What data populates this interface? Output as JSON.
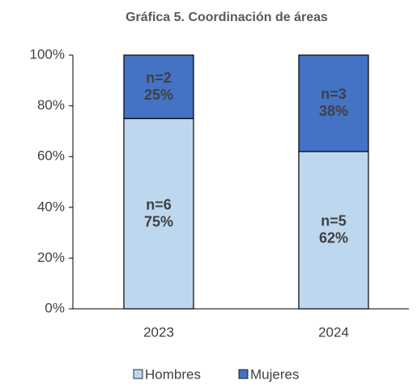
{
  "chart_data": {
    "type": "stacked_bar",
    "title": "Gráfica 5. Coordinación de áreas",
    "categories": [
      "2023",
      "2024"
    ],
    "series": [
      {
        "name": "Hombres",
        "color": "#bdd7ee",
        "values": [
          75,
          62
        ],
        "value_labels": [
          "75%",
          "62%"
        ],
        "count_labels": [
          "n=6",
          "n=5"
        ]
      },
      {
        "name": "Mujeres",
        "color": "#4472c4",
        "values": [
          25,
          38
        ],
        "value_labels": [
          "25%",
          "38%"
        ],
        "count_labels": [
          "n=2",
          "n=3"
        ]
      }
    ],
    "ylim": [
      0,
      100
    ],
    "yticks": [
      {
        "value": 0,
        "label": "0%"
      },
      {
        "value": 20,
        "label": "20%"
      },
      {
        "value": 40,
        "label": "40%"
      },
      {
        "value": 60,
        "label": "60%"
      },
      {
        "value": 80,
        "label": "80%"
      },
      {
        "value": 100,
        "label": "100%"
      }
    ],
    "legend": "bottom"
  }
}
